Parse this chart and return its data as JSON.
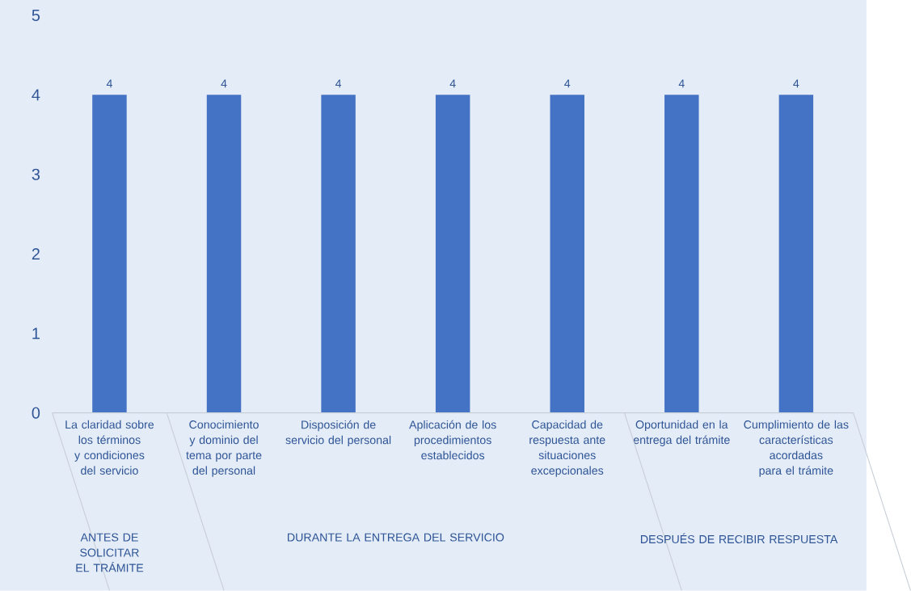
{
  "chart_data": {
    "type": "bar",
    "categories": [
      "La claridad sobre los términos y condiciones del servicio",
      "Conocimiento y dominio del tema por parte del personal",
      "Disposición de servicio del personal",
      "Aplicación de los procedimientos establecidos",
      "Capacidad de respuesta ante situaciones excepcionales",
      "Oportunidad en la entrega del trámite",
      "Cumplimiento de las características acordadas para el trámite"
    ],
    "values": [
      4,
      4,
      4,
      4,
      4,
      4,
      4
    ],
    "color": "#4472c4",
    "ylim": [
      0,
      5
    ],
    "yticks": [
      0,
      1,
      2,
      3,
      4,
      5
    ],
    "data_labels": true,
    "annotations": [
      "ANTES DE SOLICITAR EL TRÁMITE",
      "DURANTE LA ENTREGA DEL SERVICIO",
      "DESPUÉS DE RECIBIR RESPUESTA"
    ]
  }
}
